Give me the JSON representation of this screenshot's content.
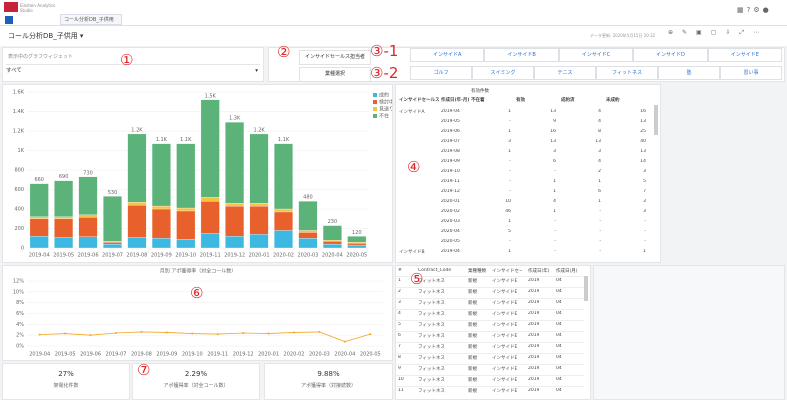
{
  "top_bar": {
    "app_name": "Einstein Analytics Studio",
    "tab": "コール分析DB_子供用"
  },
  "header": {
    "title": "コール分析DB_子供用 ▾",
    "updated": "データ更新: 2020年5月15日 10:32"
  },
  "annotations": [
    "①",
    "②",
    "③-1",
    "③-2",
    "④",
    "⑤",
    "⑥",
    "⑦"
  ],
  "filter": {
    "label": "表示中のグラフウィジェット",
    "value": "すべて"
  },
  "inside_sales": {
    "label": "インサイドセールス担当者",
    "options": [
      "インサイドA",
      "インサイドB",
      "インサイドC",
      "インサイドD",
      "インサイドE"
    ]
  },
  "industry": {
    "label": "業種選択",
    "options": [
      "ゴルフ",
      "スイミング",
      "テニス",
      "フィットネス",
      "塾",
      "習い事"
    ]
  },
  "chart_data": [
    {
      "type": "stacked_bar",
      "categories": [
        "2019-04",
        "2019-05",
        "2019-06",
        "2019-07",
        "2019-08",
        "2019-09",
        "2019-10",
        "2019-11",
        "2019-12",
        "2020-01",
        "2020-02",
        "2020-03",
        "2020-04",
        "2020-05"
      ],
      "series": [
        {
          "name": "成約",
          "color": "#3db8e0",
          "values": [
            120,
            110,
            115,
            40,
            110,
            100,
            90,
            150,
            120,
            140,
            180,
            100,
            40,
            30
          ]
        },
        {
          "name": "検討中",
          "color": "#e8612c",
          "values": [
            180,
            190,
            200,
            20,
            330,
            300,
            290,
            330,
            310,
            290,
            190,
            60,
            30,
            20
          ]
        },
        {
          "name": "見送り",
          "color": "#f7c143",
          "values": [
            20,
            20,
            25,
            10,
            30,
            30,
            30,
            40,
            30,
            30,
            30,
            20,
            10,
            10
          ]
        },
        {
          "name": "不在",
          "color": "#5bb37a",
          "values": [
            340,
            370,
            390,
            460,
            700,
            640,
            660,
            1000,
            830,
            710,
            670,
            300,
            150,
            60
          ]
        }
      ],
      "total_labels": [
        "660",
        "690",
        "730",
        "530",
        "1.2K",
        "1.1K",
        "1.1K",
        "1.5K",
        "1.3K",
        "1.2K",
        "1.1K",
        "480",
        "230",
        "120"
      ],
      "ylim": [
        0,
        1600
      ],
      "yticks": [
        0,
        {
          "value": 200,
          "label": "200"
        },
        {
          "value": 400,
          "label": "400"
        },
        {
          "value": 600,
          "label": "600"
        },
        {
          "value": 800,
          "label": "800"
        },
        {
          "value": 1000,
          "label": "1K"
        },
        {
          "value": 1200,
          "label": "1.2K"
        },
        {
          "value": 1400,
          "label": "1.4K"
        },
        {
          "value": 1600,
          "label": "1.6K"
        }
      ],
      "grid": true
    },
    {
      "type": "line",
      "title": "月別 アポ獲得率（対全コール数）",
      "color": "#f5a623",
      "categories": [
        "2019-04",
        "2019-05",
        "2019-06",
        "2019-07",
        "2019-08",
        "2019-09",
        "2019-10",
        "2019-11",
        "2019-12",
        "2020-01",
        "2020-02",
        "2020-03",
        "2020-04",
        "2020-05"
      ],
      "values": [
        2.1,
        2.3,
        2.0,
        2.4,
        2.6,
        2.5,
        2.3,
        2.2,
        2.4,
        2.3,
        2.5,
        2.6,
        0.8,
        2.2
      ],
      "ylim": [
        0,
        12
      ],
      "yticks": [
        {
          "value": 0,
          "label": "0%"
        },
        {
          "value": 2,
          "label": "2%"
        },
        {
          "value": 4,
          "label": "4%"
        },
        {
          "value": 6,
          "label": "6%"
        },
        {
          "value": 8,
          "label": "8%"
        },
        {
          "value": 10,
          "label": "10%"
        },
        {
          "value": 12,
          "label": "12%"
        }
      ],
      "grid": true
    }
  ],
  "pivot_table": {
    "group_header": "有効件数",
    "columns": [
      "インサイドセールス",
      "作成日(年-月)",
      "不在着",
      "有効",
      "成約済",
      "未成約"
    ],
    "rows": [
      [
        "インサイドA",
        "2019-04",
        "1",
        "13",
        "4",
        "16"
      ],
      [
        null,
        "2019-05",
        "-",
        "9",
        "4",
        "13"
      ],
      [
        null,
        "2019-06",
        "1",
        "16",
        "8",
        "25"
      ],
      [
        null,
        "2019-07",
        "3",
        "13",
        "13",
        "40"
      ],
      [
        null,
        "2019-08",
        "1",
        "3",
        "3",
        "13"
      ],
      [
        null,
        "2019-09",
        "-",
        "6",
        "4",
        "14"
      ],
      [
        null,
        "2019-10",
        "-",
        "-",
        "2",
        "3"
      ],
      [
        null,
        "2019-11",
        "-",
        "1",
        "1",
        "5"
      ],
      [
        null,
        "2019-12",
        "-",
        "1",
        "6",
        "7"
      ],
      [
        null,
        "2020-01",
        "10",
        "4",
        "1",
        "3"
      ],
      [
        null,
        "2020-02",
        "46",
        "1",
        "-",
        "3"
      ],
      [
        null,
        "2020-03",
        "1",
        "-",
        "-",
        "-"
      ],
      [
        null,
        "2020-04",
        "5",
        "-",
        "-",
        "-"
      ],
      [
        null,
        "2020-05",
        "-",
        "-",
        "-",
        "-"
      ],
      [
        "インサイドB",
        "2019-04",
        "1",
        "-",
        "-",
        "1"
      ]
    ]
  },
  "detail_table": {
    "columns": [
      "#",
      "Contract_Code",
      "業種種類",
      "インサイドセールス",
      "作成日(年)",
      "作成日(月)"
    ],
    "rows": [
      [
        "1",
        "フィットネス",
        "新規",
        "インサイドE",
        "2019",
        "04"
      ],
      [
        "2",
        "フィットネス",
        "新規",
        "インサイドE",
        "2019",
        "04"
      ],
      [
        "3",
        "フィットネス",
        "新規",
        "インサイドE",
        "2019",
        "04"
      ],
      [
        "4",
        "フィットネス",
        "新規",
        "インサイドE",
        "2019",
        "04"
      ],
      [
        "5",
        "フィットネス",
        "新規",
        "インサイドE",
        "2019",
        "04"
      ],
      [
        "6",
        "フィットネス",
        "新規",
        "インサイドE",
        "2019",
        "04"
      ],
      [
        "7",
        "フィットネス",
        "新規",
        "インサイドE",
        "2019",
        "04"
      ],
      [
        "8",
        "フィットネス",
        "新規",
        "インサイドE",
        "2019",
        "04"
      ],
      [
        "9",
        "フィットネス",
        "新規",
        "インサイドE",
        "2019",
        "04"
      ],
      [
        "10",
        "フィットネス",
        "新規",
        "インサイドE",
        "2019",
        "04"
      ],
      [
        "11",
        "フィットネス",
        "新規",
        "インサイドE",
        "2019",
        "04"
      ]
    ]
  },
  "kpis": [
    {
      "value": "27%",
      "label": "架電化件数"
    },
    {
      "value": "2.29%",
      "label": "アポ獲得率（対全コール数）"
    },
    {
      "value": "9.88%",
      "label": "アポ獲得率（対接続数）"
    }
  ]
}
